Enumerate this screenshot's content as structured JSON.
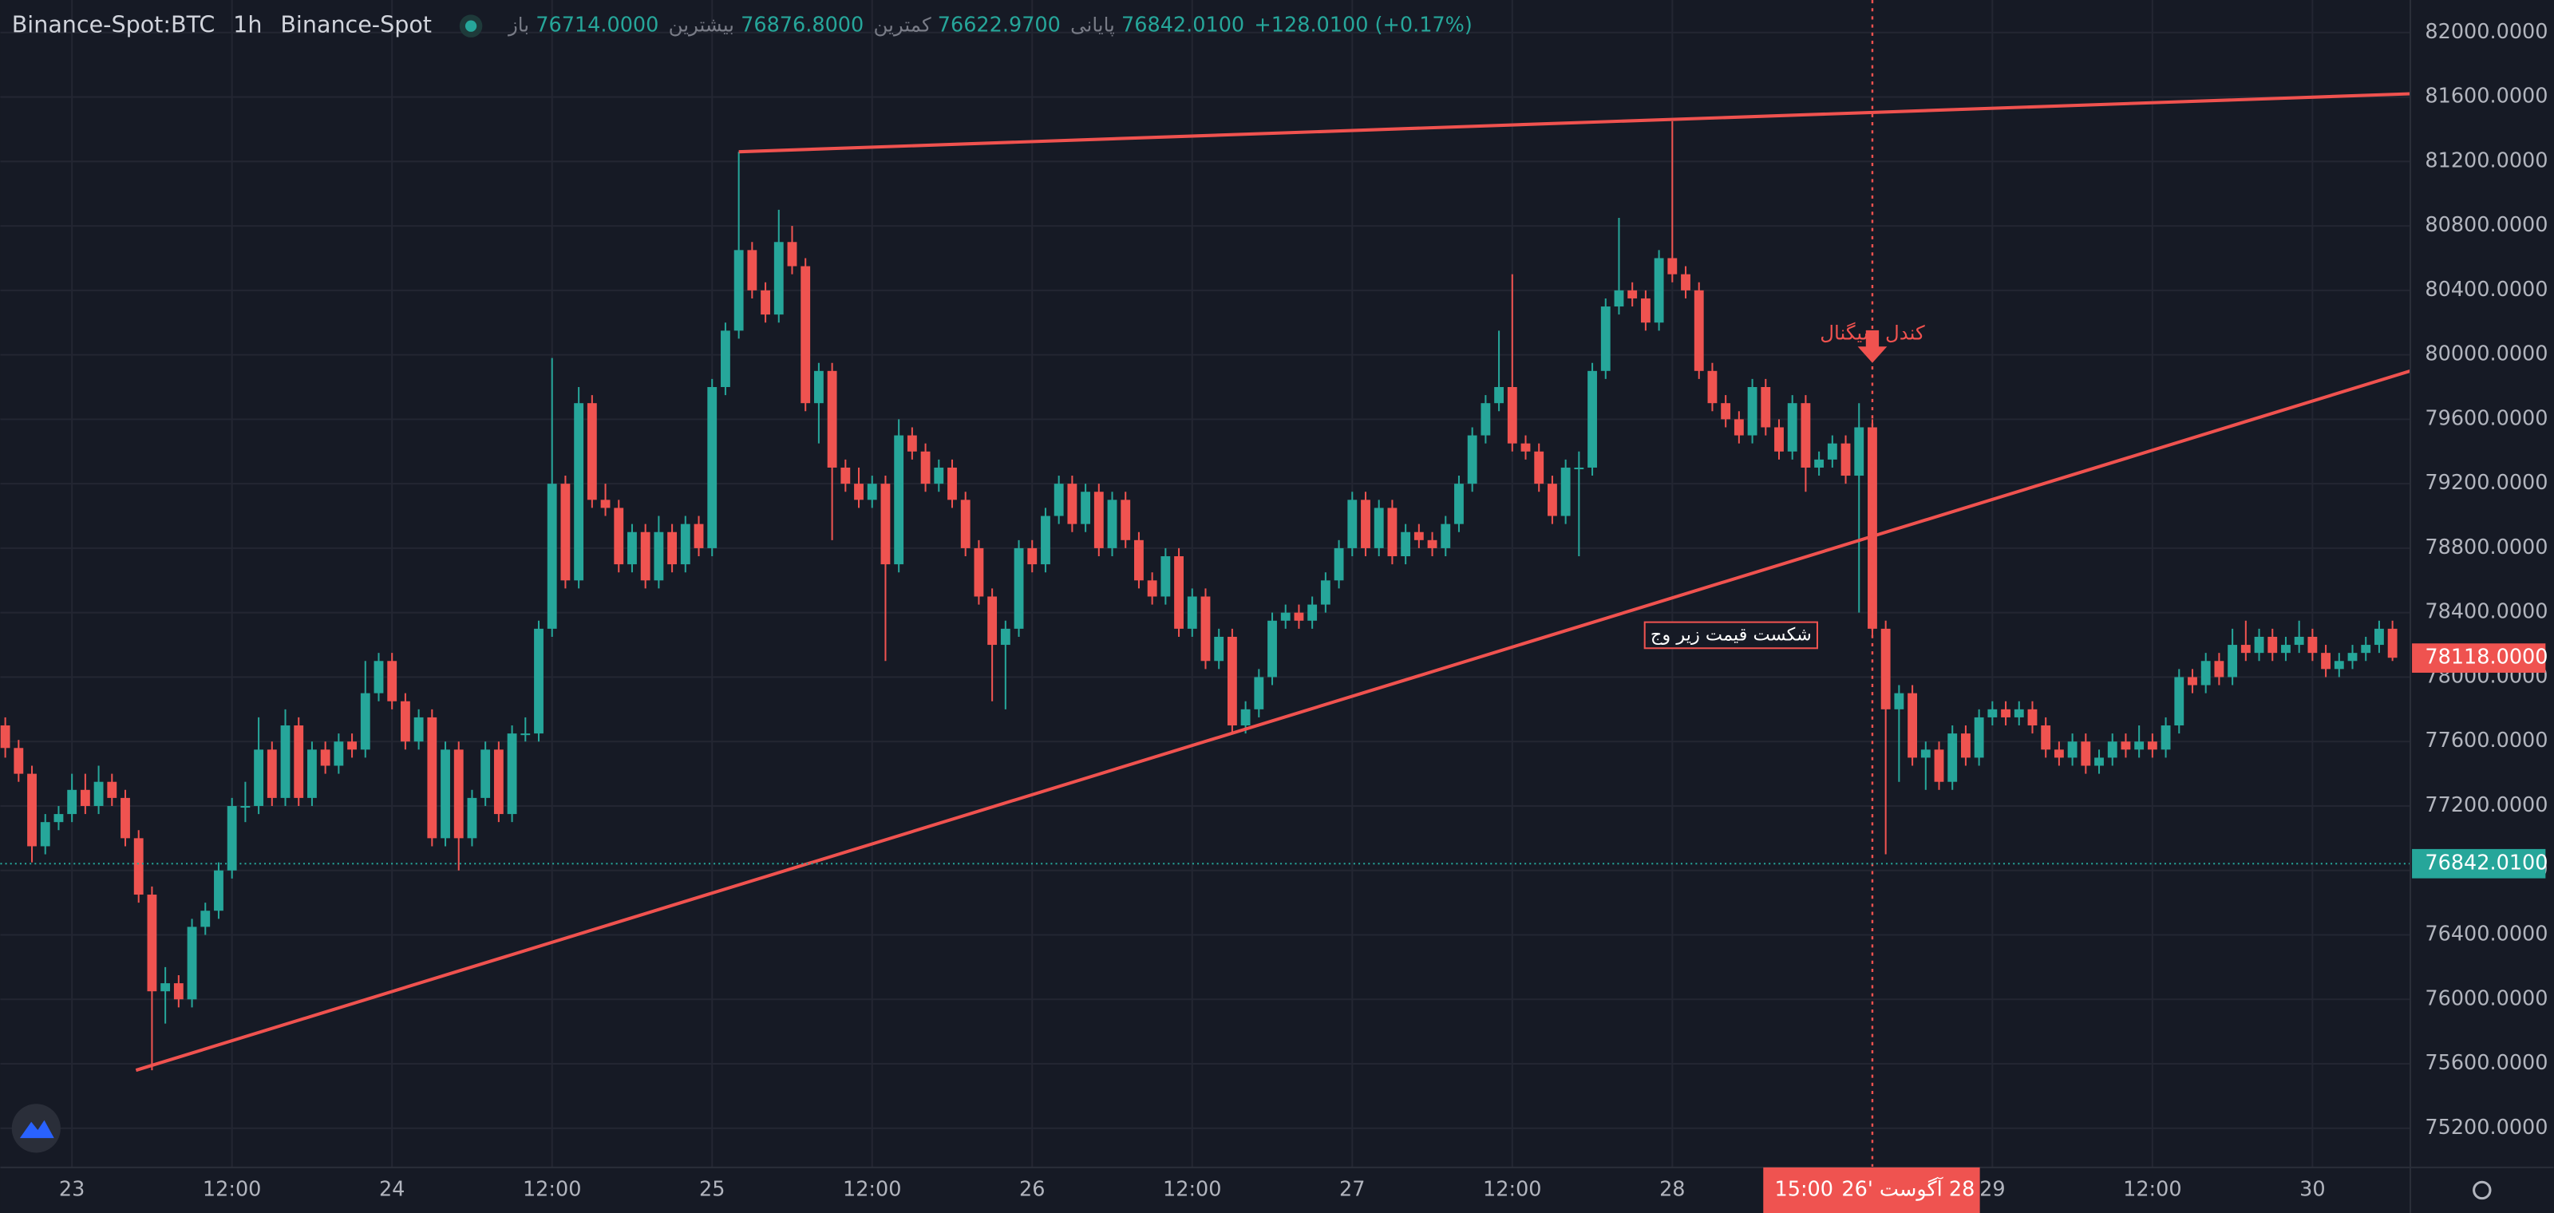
{
  "chart_data": {
    "type": "candlestick",
    "header": {
      "symbol": "Binance-Spot:BTC",
      "interval": "1h",
      "exchange": "Binance-Spot",
      "legend": [
        {
          "label": "باز",
          "value": "76714.0000"
        },
        {
          "label": "بیشترین",
          "value": "76876.8000"
        },
        {
          "label": "کمترین",
          "value": "76622.9700"
        },
        {
          "label": "پایانی",
          "value": "76842.0100"
        }
      ],
      "change": "+128.0100 (+0.17%)"
    },
    "up_color": "#26a69a",
    "down_color": "#ef5350",
    "grid": true,
    "xlim": [
      -0.37,
      180.34
    ],
    "ylim": [
      74957,
      82202
    ],
    "yticks": [
      {
        "value": 75200,
        "label": "75200.0000"
      },
      {
        "value": 75600,
        "label": "75600.0000"
      },
      {
        "value": 76000,
        "label": "76000.0000"
      },
      {
        "value": 76400,
        "label": "76400.0000"
      },
      {
        "value": 76800,
        "label": "76800.0000"
      },
      {
        "value": 77200,
        "label": "77200.0000"
      },
      {
        "value": 77600,
        "label": "77600.0000"
      },
      {
        "value": 78000,
        "label": "78000.0000"
      },
      {
        "value": 78400,
        "label": "78400.0000"
      },
      {
        "value": 78800,
        "label": "78800.0000"
      },
      {
        "value": 79200,
        "label": "79200.0000"
      },
      {
        "value": 79600,
        "label": "79600.0000"
      },
      {
        "value": 80000,
        "label": "80000.0000"
      },
      {
        "value": 80400,
        "label": "80400.0000"
      },
      {
        "value": 80800,
        "label": "80800.0000"
      },
      {
        "value": 81200,
        "label": "81200.0000"
      },
      {
        "value": 81600,
        "label": "81600.0000"
      },
      {
        "value": 82000,
        "label": "82000.0000"
      }
    ],
    "xticks": [
      {
        "value": 5,
        "label": "23"
      },
      {
        "value": 17,
        "label": "12:00"
      },
      {
        "value": 29,
        "label": "24"
      },
      {
        "value": 41,
        "label": "12:00"
      },
      {
        "value": 53,
        "label": "25"
      },
      {
        "value": 65,
        "label": "12:00"
      },
      {
        "value": 77,
        "label": "26"
      },
      {
        "value": 89,
        "label": "12:00"
      },
      {
        "value": 101,
        "label": "27"
      },
      {
        "value": 113,
        "label": "12:00"
      },
      {
        "value": 125,
        "label": "28"
      },
      {
        "value": 149,
        "label": "29"
      },
      {
        "value": 161,
        "label": "12:00"
      },
      {
        "value": 173,
        "label": "30"
      }
    ],
    "ohlc": [
      [
        77700,
        77750,
        77500,
        77560
      ],
      [
        77560,
        77610,
        77350,
        77400
      ],
      [
        77400,
        77450,
        76850,
        76950
      ],
      [
        76950,
        77150,
        76900,
        77100
      ],
      [
        77100,
        77200,
        77050,
        77150
      ],
      [
        77150,
        77400,
        77100,
        77300
      ],
      [
        77300,
        77400,
        77150,
        77200
      ],
      [
        77200,
        77450,
        77150,
        77350
      ],
      [
        77350,
        77400,
        77200,
        77250
      ],
      [
        77250,
        77300,
        76950,
        77000
      ],
      [
        77000,
        77050,
        76600,
        76650
      ],
      [
        76650,
        76700,
        75560,
        76050
      ],
      [
        76050,
        76200,
        75850,
        76100
      ],
      [
        76100,
        76150,
        75950,
        76000
      ],
      [
        76000,
        76500,
        75950,
        76450
      ],
      [
        76450,
        76600,
        76400,
        76550
      ],
      [
        76550,
        76850,
        76500,
        76800
      ],
      [
        76800,
        77250,
        76750,
        77200
      ],
      [
        77200,
        77350,
        77100,
        77200
      ],
      [
        77200,
        77750,
        77150,
        77550
      ],
      [
        77550,
        77600,
        77200,
        77250
      ],
      [
        77250,
        77800,
        77200,
        77700
      ],
      [
        77700,
        77750,
        77200,
        77250
      ],
      [
        77250,
        77600,
        77200,
        77550
      ],
      [
        77550,
        77600,
        77400,
        77450
      ],
      [
        77450,
        77650,
        77400,
        77600
      ],
      [
        77600,
        77650,
        77500,
        77550
      ],
      [
        77550,
        78100,
        77500,
        77900
      ],
      [
        77900,
        78150,
        77850,
        78100
      ],
      [
        78100,
        78150,
        77800,
        77850
      ],
      [
        77850,
        77900,
        77550,
        77600
      ],
      [
        77600,
        77800,
        77550,
        77750
      ],
      [
        77750,
        77800,
        76950,
        77000
      ],
      [
        77000,
        77600,
        76950,
        77550
      ],
      [
        77550,
        77600,
        76800,
        77000
      ],
      [
        77000,
        77300,
        76950,
        77250
      ],
      [
        77250,
        77600,
        77200,
        77550
      ],
      [
        77550,
        77600,
        77100,
        77150
      ],
      [
        77150,
        77700,
        77100,
        77650
      ],
      [
        77650,
        77750,
        77600,
        77650
      ],
      [
        77650,
        78350,
        77600,
        78300
      ],
      [
        78300,
        79980,
        78250,
        79200
      ],
      [
        79200,
        79250,
        78550,
        78600
      ],
      [
        78600,
        79800,
        78550,
        79700
      ],
      [
        79700,
        79750,
        79050,
        79100
      ],
      [
        79100,
        79200,
        79000,
        79050
      ],
      [
        79050,
        79100,
        78650,
        78700
      ],
      [
        78700,
        78950,
        78650,
        78900
      ],
      [
        78900,
        78950,
        78550,
        78600
      ],
      [
        78600,
        79000,
        78550,
        78900
      ],
      [
        78900,
        78950,
        78650,
        78700
      ],
      [
        78700,
        79000,
        78650,
        78950
      ],
      [
        78950,
        79000,
        78750,
        78800
      ],
      [
        78800,
        79850,
        78750,
        79800
      ],
      [
        79800,
        80200,
        79750,
        80150
      ],
      [
        80150,
        81260,
        80100,
        80650
      ],
      [
        80650,
        80700,
        80350,
        80400
      ],
      [
        80400,
        80450,
        80200,
        80250
      ],
      [
        80250,
        80900,
        80200,
        80700
      ],
      [
        80700,
        80800,
        80500,
        80550
      ],
      [
        80550,
        80600,
        79650,
        79700
      ],
      [
        79700,
        79950,
        79450,
        79900
      ],
      [
        79900,
        79950,
        78850,
        79300
      ],
      [
        79300,
        79350,
        79150,
        79200
      ],
      [
        79200,
        79300,
        79050,
        79100
      ],
      [
        79100,
        79250,
        79050,
        79200
      ],
      [
        79200,
        79250,
        78100,
        78700
      ],
      [
        78700,
        79600,
        78650,
        79500
      ],
      [
        79500,
        79550,
        79350,
        79400
      ],
      [
        79400,
        79450,
        79150,
        79200
      ],
      [
        79200,
        79350,
        79150,
        79300
      ],
      [
        79300,
        79350,
        79050,
        79100
      ],
      [
        79100,
        79150,
        78750,
        78800
      ],
      [
        78800,
        78850,
        78450,
        78500
      ],
      [
        78500,
        78550,
        77850,
        78200
      ],
      [
        78200,
        78350,
        77800,
        78300
      ],
      [
        78300,
        78850,
        78250,
        78800
      ],
      [
        78800,
        78850,
        78650,
        78700
      ],
      [
        78700,
        79050,
        78650,
        79000
      ],
      [
        79000,
        79250,
        78950,
        79200
      ],
      [
        79200,
        79250,
        78900,
        78950
      ],
      [
        78950,
        79200,
        78900,
        79150
      ],
      [
        79150,
        79200,
        78750,
        78800
      ],
      [
        78800,
        79150,
        78750,
        79100
      ],
      [
        79100,
        79150,
        78800,
        78850
      ],
      [
        78850,
        78900,
        78550,
        78600
      ],
      [
        78600,
        78650,
        78450,
        78500
      ],
      [
        78500,
        78800,
        78450,
        78750
      ],
      [
        78750,
        78800,
        78250,
        78300
      ],
      [
        78300,
        78550,
        78250,
        78500
      ],
      [
        78500,
        78550,
        78050,
        78100
      ],
      [
        78100,
        78300,
        78050,
        78250
      ],
      [
        78250,
        78300,
        77650,
        77700
      ],
      [
        77700,
        77850,
        77650,
        77800
      ],
      [
        77800,
        78050,
        77750,
        78000
      ],
      [
        78000,
        78400,
        77950,
        78350
      ],
      [
        78350,
        78450,
        78300,
        78400
      ],
      [
        78400,
        78450,
        78300,
        78350
      ],
      [
        78350,
        78500,
        78300,
        78450
      ],
      [
        78450,
        78650,
        78400,
        78600
      ],
      [
        78600,
        78850,
        78550,
        78800
      ],
      [
        78800,
        79150,
        78750,
        79100
      ],
      [
        79100,
        79150,
        78750,
        78800
      ],
      [
        78800,
        79100,
        78750,
        79050
      ],
      [
        79050,
        79100,
        78700,
        78750
      ],
      [
        78750,
        78950,
        78700,
        78900
      ],
      [
        78900,
        78950,
        78800,
        78850
      ],
      [
        78850,
        78900,
        78750,
        78800
      ],
      [
        78800,
        79000,
        78750,
        78950
      ],
      [
        78950,
        79250,
        78900,
        79200
      ],
      [
        79200,
        79550,
        79150,
        79500
      ],
      [
        79500,
        79750,
        79450,
        79700
      ],
      [
        79700,
        80150,
        79650,
        79800
      ],
      [
        79800,
        80500,
        79400,
        79450
      ],
      [
        79450,
        79500,
        79350,
        79400
      ],
      [
        79400,
        79450,
        79150,
        79200
      ],
      [
        79200,
        79250,
        78950,
        79000
      ],
      [
        79000,
        79350,
        78950,
        79300
      ],
      [
        79300,
        79400,
        78750,
        79300
      ],
      [
        79300,
        79950,
        79250,
        79900
      ],
      [
        79900,
        80350,
        79850,
        80300
      ],
      [
        80300,
        80850,
        80250,
        80400
      ],
      [
        80400,
        80450,
        80300,
        80350
      ],
      [
        80350,
        80400,
        80150,
        80200
      ],
      [
        80200,
        80650,
        80150,
        80600
      ],
      [
        80600,
        81450,
        80450,
        80500
      ],
      [
        80500,
        80550,
        80350,
        80400
      ],
      [
        80400,
        80450,
        79850,
        79900
      ],
      [
        79900,
        79950,
        79650,
        79700
      ],
      [
        79700,
        79750,
        79550,
        79600
      ],
      [
        79600,
        79650,
        79450,
        79500
      ],
      [
        79500,
        79850,
        79450,
        79800
      ],
      [
        79800,
        79850,
        79500,
        79550
      ],
      [
        79550,
        79600,
        79350,
        79400
      ],
      [
        79400,
        79750,
        79350,
        79700
      ],
      [
        79700,
        79750,
        79150,
        79300
      ],
      [
        79300,
        79400,
        79250,
        79350
      ],
      [
        79350,
        79500,
        79300,
        79450
      ],
      [
        79450,
        79500,
        79200,
        79250
      ],
      [
        79250,
        79700,
        78400,
        79550
      ],
      [
        79550,
        79600,
        78250,
        78300
      ],
      [
        78300,
        78350,
        76900,
        77800
      ],
      [
        77800,
        77950,
        77350,
        77900
      ],
      [
        77900,
        77950,
        77450,
        77500
      ],
      [
        77500,
        77600,
        77300,
        77550
      ],
      [
        77550,
        77600,
        77300,
        77350
      ],
      [
        77350,
        77700,
        77300,
        77650
      ],
      [
        77650,
        77700,
        77450,
        77500
      ],
      [
        77500,
        77800,
        77450,
        77750
      ],
      [
        77750,
        77850,
        77700,
        77800
      ],
      [
        77800,
        77850,
        77700,
        77750
      ],
      [
        77750,
        77850,
        77700,
        77800
      ],
      [
        77800,
        77850,
        77650,
        77700
      ],
      [
        77700,
        77750,
        77500,
        77550
      ],
      [
        77550,
        77600,
        77450,
        77500
      ],
      [
        77500,
        77650,
        77450,
        77600
      ],
      [
        77600,
        77650,
        77400,
        77450
      ],
      [
        77450,
        77550,
        77400,
        77500
      ],
      [
        77500,
        77650,
        77450,
        77600
      ],
      [
        77600,
        77650,
        77500,
        77550
      ],
      [
        77550,
        77700,
        77500,
        77600
      ],
      [
        77600,
        77650,
        77500,
        77550
      ],
      [
        77550,
        77750,
        77500,
        77700
      ],
      [
        77700,
        78050,
        77650,
        78000
      ],
      [
        78000,
        78050,
        77900,
        77950
      ],
      [
        77950,
        78150,
        77900,
        78100
      ],
      [
        78100,
        78150,
        77950,
        78000
      ],
      [
        78000,
        78300,
        77950,
        78200
      ],
      [
        78200,
        78350,
        78100,
        78150
      ],
      [
        78150,
        78300,
        78100,
        78250
      ],
      [
        78250,
        78300,
        78100,
        78150
      ],
      [
        78150,
        78250,
        78100,
        78200
      ],
      [
        78200,
        78350,
        78150,
        78250
      ],
      [
        78250,
        78300,
        78100,
        78150
      ],
      [
        78150,
        78200,
        78000,
        78050
      ],
      [
        78050,
        78150,
        78000,
        78100
      ],
      [
        78100,
        78200,
        78050,
        78150
      ],
      [
        78150,
        78250,
        78100,
        78200
      ],
      [
        78200,
        78350,
        78150,
        78300
      ],
      [
        78300,
        78350,
        78100,
        78120
      ]
    ],
    "trend_lines": [
      {
        "x": [
          55,
          180.34
        ],
        "y": [
          81260,
          81620
        ],
        "color": "#f0524f"
      },
      {
        "x": [
          9.8,
          180.34
        ],
        "y": [
          75560,
          79900
        ],
        "color": "#f0524f"
      }
    ],
    "signal": {
      "x": 140,
      "arrow_y": 79950,
      "text": "کندل سیگنال",
      "text_y": 80130,
      "color": "#f0524f",
      "time": "15:00",
      "date": "28 آگوست '26"
    },
    "note": {
      "text": "شکست قیمت زیر وج",
      "x": 129.4,
      "y": 78260
    },
    "price_lines": [
      {
        "value": 76842.01,
        "label": "76842.0100",
        "color": "#26a69a",
        "line": true
      },
      {
        "value": 78118,
        "label": "78118.0000",
        "color": "#ef5350",
        "line": false
      }
    ]
  }
}
